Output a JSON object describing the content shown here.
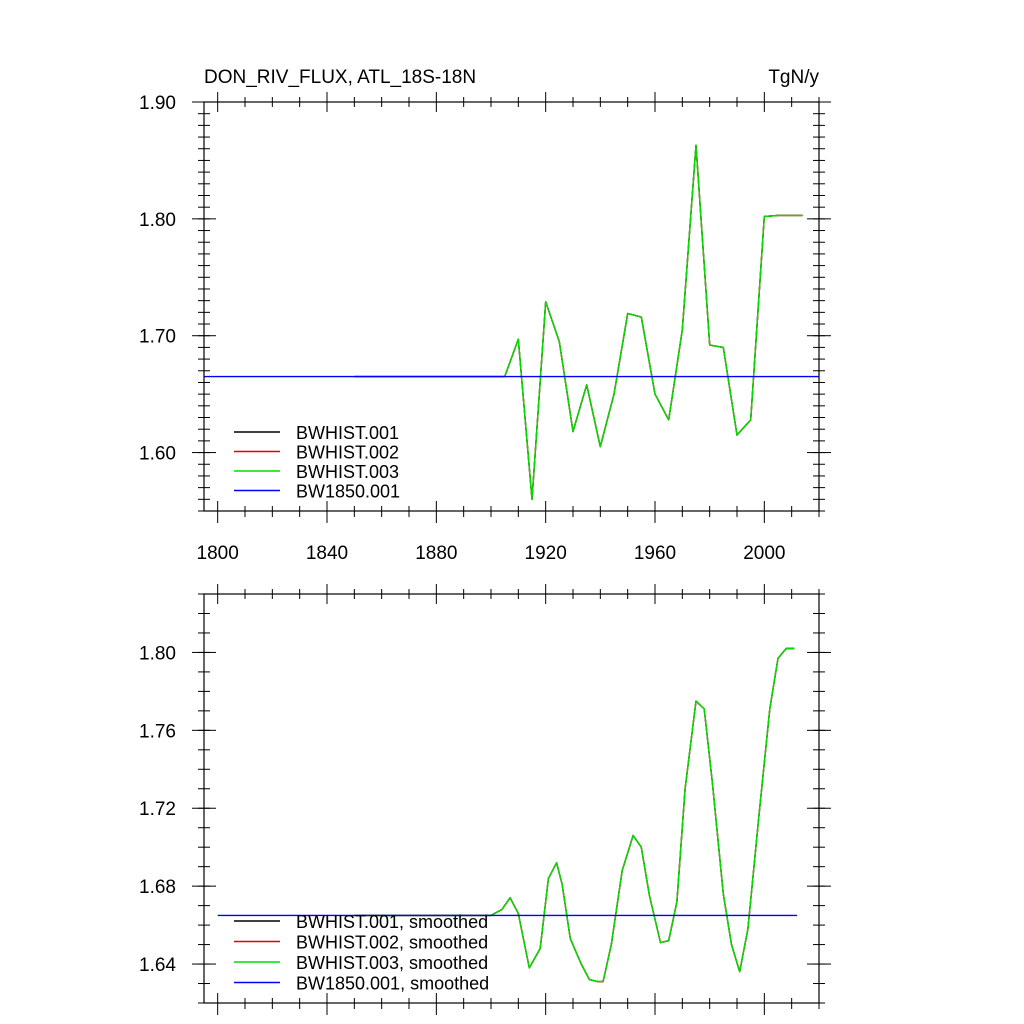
{
  "chart_data": [
    {
      "type": "line",
      "title": "DON_RIV_FLUX, ATL_18S-18N",
      "units": "TgN/y",
      "xlim": [
        1795,
        2020
      ],
      "ylim": [
        1.55,
        1.9
      ],
      "x_ticks": [
        1800,
        1840,
        1880,
        1920,
        1960,
        2000
      ],
      "y_ticks": [
        1.6,
        1.7,
        1.8,
        1.9
      ],
      "y_tick_labels": [
        "1.60",
        "1.70",
        "1.80",
        "1.90"
      ],
      "legend_placement": "bottom-left",
      "series": [
        {
          "name": "BWHIST.001",
          "color": "#000000",
          "x": [
            1850,
            1905,
            1910,
            1915,
            1920,
            1925,
            1930,
            1935,
            1940,
            1945,
            1950,
            1955,
            1960,
            1965,
            1970,
            1975,
            1980,
            1985,
            1990,
            1995,
            2000,
            2005,
            2014
          ],
          "y": [
            1.665,
            1.665,
            1.697,
            1.56,
            1.729,
            1.695,
            1.618,
            1.658,
            1.605,
            1.65,
            1.719,
            1.716,
            1.65,
            1.628,
            1.705,
            1.863,
            1.692,
            1.69,
            1.615,
            1.628,
            1.802,
            1.803,
            1.803
          ]
        },
        {
          "name": "BWHIST.002",
          "color": "#e00000",
          "x": [
            1850,
            1905,
            1910,
            1915,
            1920,
            1925,
            1930,
            1935,
            1940,
            1945,
            1950,
            1955,
            1960,
            1965,
            1970,
            1975,
            1980,
            1985,
            1990,
            1995,
            2000,
            2005,
            2014
          ],
          "y": [
            1.665,
            1.665,
            1.697,
            1.56,
            1.729,
            1.695,
            1.618,
            1.658,
            1.605,
            1.65,
            1.719,
            1.716,
            1.65,
            1.628,
            1.705,
            1.863,
            1.692,
            1.69,
            1.615,
            1.628,
            1.802,
            1.803,
            1.803
          ]
        },
        {
          "name": "BWHIST.003",
          "color": "#00dd00",
          "x": [
            1850,
            1905,
            1910,
            1915,
            1920,
            1925,
            1930,
            1935,
            1940,
            1945,
            1950,
            1955,
            1960,
            1965,
            1970,
            1975,
            1980,
            1985,
            1990,
            1995,
            2000,
            2005,
            2014
          ],
          "y": [
            1.665,
            1.665,
            1.697,
            1.56,
            1.729,
            1.695,
            1.618,
            1.658,
            1.605,
            1.65,
            1.719,
            1.716,
            1.65,
            1.628,
            1.705,
            1.863,
            1.692,
            1.69,
            1.615,
            1.628,
            1.802,
            1.803,
            1.803
          ]
        },
        {
          "name": "BW1850.001",
          "color": "#0000ff",
          "x": [
            1795,
            2020
          ],
          "y": [
            1.665,
            1.665
          ]
        }
      ]
    },
    {
      "type": "line",
      "xlim": [
        1795,
        2020
      ],
      "ylim": [
        1.62,
        1.83
      ],
      "x_ticks": [
        1800,
        1840,
        1880,
        1920,
        1960,
        2000
      ],
      "y_ticks": [
        1.64,
        1.68,
        1.72,
        1.76,
        1.8
      ],
      "y_tick_labels": [
        "1.64",
        "1.68",
        "1.72",
        "1.76",
        "1.80"
      ],
      "legend_placement": "bottom-left",
      "series": [
        {
          "name": "BWHIST.001, smoothed",
          "color": "#000000",
          "x": [
            1850,
            1900,
            1904,
            1907,
            1910,
            1914,
            1918,
            1921,
            1924,
            1926,
            1929,
            1933,
            1936,
            1939,
            1941,
            1944,
            1948,
            1952,
            1955,
            1958,
            1962,
            1965,
            1968,
            1971,
            1975,
            1978,
            1981,
            1985,
            1988,
            1991,
            1994,
            1998,
            2002,
            2005,
            2008,
            2011
          ],
          "y": [
            1.665,
            1.665,
            1.668,
            1.674,
            1.666,
            1.638,
            1.648,
            1.684,
            1.692,
            1.681,
            1.653,
            1.64,
            1.632,
            1.631,
            1.631,
            1.65,
            1.688,
            1.706,
            1.7,
            1.675,
            1.651,
            1.652,
            1.672,
            1.73,
            1.775,
            1.771,
            1.733,
            1.676,
            1.65,
            1.636,
            1.658,
            1.716,
            1.771,
            1.797,
            1.802,
            1.802
          ]
        },
        {
          "name": "BWHIST.002, smoothed",
          "color": "#e00000",
          "x": [
            1850,
            1900,
            1904,
            1907,
            1910,
            1914,
            1918,
            1921,
            1924,
            1926,
            1929,
            1933,
            1936,
            1939,
            1941,
            1944,
            1948,
            1952,
            1955,
            1958,
            1962,
            1965,
            1968,
            1971,
            1975,
            1978,
            1981,
            1985,
            1988,
            1991,
            1994,
            1998,
            2002,
            2005,
            2008,
            2011
          ],
          "y": [
            1.665,
            1.665,
            1.668,
            1.674,
            1.666,
            1.638,
            1.648,
            1.684,
            1.692,
            1.681,
            1.653,
            1.64,
            1.632,
            1.631,
            1.631,
            1.65,
            1.688,
            1.706,
            1.7,
            1.675,
            1.651,
            1.652,
            1.672,
            1.73,
            1.775,
            1.771,
            1.733,
            1.676,
            1.65,
            1.636,
            1.658,
            1.716,
            1.771,
            1.797,
            1.802,
            1.802
          ]
        },
        {
          "name": "BWHIST.003, smoothed",
          "color": "#00dd00",
          "x": [
            1850,
            1900,
            1904,
            1907,
            1910,
            1914,
            1918,
            1921,
            1924,
            1926,
            1929,
            1933,
            1936,
            1939,
            1941,
            1944,
            1948,
            1952,
            1955,
            1958,
            1962,
            1965,
            1968,
            1971,
            1975,
            1978,
            1981,
            1985,
            1988,
            1991,
            1994,
            1998,
            2002,
            2005,
            2008,
            2011
          ],
          "y": [
            1.665,
            1.665,
            1.668,
            1.674,
            1.666,
            1.638,
            1.648,
            1.684,
            1.692,
            1.681,
            1.653,
            1.64,
            1.632,
            1.631,
            1.631,
            1.65,
            1.688,
            1.706,
            1.7,
            1.675,
            1.651,
            1.652,
            1.672,
            1.73,
            1.775,
            1.771,
            1.733,
            1.676,
            1.65,
            1.636,
            1.658,
            1.716,
            1.771,
            1.797,
            1.802,
            1.802
          ]
        },
        {
          "name": "BW1850.001, smoothed",
          "color": "#0000ff",
          "x": [
            1800,
            2012
          ],
          "y": [
            1.665,
            1.665
          ]
        }
      ]
    }
  ]
}
